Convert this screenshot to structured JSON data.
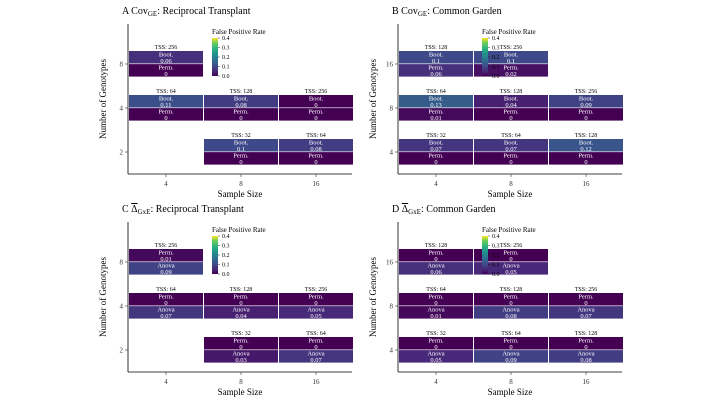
{
  "chart_data": [
    {
      "type": "heatmap",
      "panel_letter": "A",
      "title_main": "Cov",
      "title_sub": "GE",
      "title_rest": ": Reciprocal Transplant",
      "overline": false,
      "xlabel": "Sample Size",
      "ylabel": "Number of Genotypes",
      "x_categories": [
        "4",
        "8",
        "16"
      ],
      "y_categories": [
        "2",
        "4",
        "8"
      ],
      "legend": {
        "title": "False Positive Rate",
        "ticks": [
          "0.4",
          "0.3",
          "0.2",
          "0.1",
          "0.0"
        ],
        "range": [
          0,
          0.4
        ]
      },
      "cells": [
        {
          "x": "4",
          "y": "8",
          "tss": "TSS: 256",
          "rows": [
            {
              "label": "Boot.",
              "value": "0.06",
              "v": 0.06
            },
            {
              "label": "Perm.",
              "value": "0",
              "v": 0
            }
          ]
        },
        {
          "x": "4",
          "y": "4",
          "tss": "TSS: 64",
          "rows": [
            {
              "label": "Boot.",
              "value": "0.11",
              "v": 0.11
            },
            {
              "label": "Perm.",
              "value": "0",
              "v": 0
            }
          ]
        },
        {
          "x": "8",
          "y": "4",
          "tss": "TSS: 128",
          "rows": [
            {
              "label": "Boot.",
              "value": "0.08",
              "v": 0.08
            },
            {
              "label": "Perm.",
              "value": "0",
              "v": 0
            }
          ]
        },
        {
          "x": "16",
          "y": "4",
          "tss": "TSS: 256",
          "rows": [
            {
              "label": "Boot.",
              "value": "0",
              "v": 0
            },
            {
              "label": "Perm.",
              "value": "0",
              "v": 0
            }
          ]
        },
        {
          "x": "8",
          "y": "2",
          "tss": "TSS: 32",
          "rows": [
            {
              "label": "Boot.",
              "value": "0.1",
              "v": 0.1
            },
            {
              "label": "Perm.",
              "value": "0",
              "v": 0
            }
          ]
        },
        {
          "x": "16",
          "y": "2",
          "tss": "TSS: 64",
          "rows": [
            {
              "label": "Boot.",
              "value": "0.08",
              "v": 0.08
            },
            {
              "label": "Perm.",
              "value": "0",
              "v": 0
            }
          ]
        }
      ]
    },
    {
      "type": "heatmap",
      "panel_letter": "B",
      "title_main": "Cov",
      "title_sub": "GE",
      "title_rest": ": Common Garden",
      "overline": false,
      "xlabel": "Sample Size",
      "ylabel": "Number of Genotypes",
      "x_categories": [
        "4",
        "8",
        "16"
      ],
      "y_categories": [
        "4",
        "8",
        "16"
      ],
      "legend": {
        "title": "False Positive Rate",
        "ticks": [
          "0.4",
          "0.3",
          "0.2",
          "0.1",
          "0.0"
        ],
        "range": [
          0,
          0.4
        ]
      },
      "cells": [
        {
          "x": "4",
          "y": "16",
          "tss": "TSS: 128",
          "rows": [
            {
              "label": "Boot.",
              "value": "0.1",
              "v": 0.1
            },
            {
              "label": "Perm.",
              "value": "0.06",
              "v": 0.06
            }
          ]
        },
        {
          "x": "8",
          "y": "16",
          "tss": "TSS: 256",
          "rows": [
            {
              "label": "Boot.",
              "value": "0.1",
              "v": 0.1
            },
            {
              "label": "Perm.",
              "value": "0.02",
              "v": 0.02
            }
          ]
        },
        {
          "x": "4",
          "y": "8",
          "tss": "TSS: 64",
          "rows": [
            {
              "label": "Boot.",
              "value": "0.13",
              "v": 0.13
            },
            {
              "label": "Perm.",
              "value": "0.01",
              "v": 0.01
            }
          ]
        },
        {
          "x": "8",
          "y": "8",
          "tss": "TSS: 128",
          "rows": [
            {
              "label": "Boot.",
              "value": "0.04",
              "v": 0.04
            },
            {
              "label": "Perm.",
              "value": "0",
              "v": 0
            }
          ]
        },
        {
          "x": "16",
          "y": "8",
          "tss": "TSS: 256",
          "rows": [
            {
              "label": "Boot.",
              "value": "0.09",
              "v": 0.09
            },
            {
              "label": "Perm.",
              "value": "0",
              "v": 0
            }
          ]
        },
        {
          "x": "4",
          "y": "4",
          "tss": "TSS: 32",
          "rows": [
            {
              "label": "Boot.",
              "value": "0.07",
              "v": 0.07
            },
            {
              "label": "Perm.",
              "value": "0",
              "v": 0
            }
          ]
        },
        {
          "x": "8",
          "y": "4",
          "tss": "TSS: 64",
          "rows": [
            {
              "label": "Boot.",
              "value": "0.07",
              "v": 0.07
            },
            {
              "label": "Perm.",
              "value": "0",
              "v": 0
            }
          ]
        },
        {
          "x": "16",
          "y": "4",
          "tss": "TSS: 128",
          "rows": [
            {
              "label": "Boot.",
              "value": "0.12",
              "v": 0.12
            },
            {
              "label": "Perm.",
              "value": "0",
              "v": 0
            }
          ]
        }
      ]
    },
    {
      "type": "heatmap",
      "panel_letter": "C",
      "title_main": "Δ",
      "title_sub": "GxE",
      "title_rest": ": Reciprocal Transplant",
      "overline": true,
      "xlabel": "Sample Size",
      "ylabel": "Number of Genotypes",
      "x_categories": [
        "4",
        "8",
        "16"
      ],
      "y_categories": [
        "2",
        "4",
        "8"
      ],
      "legend": {
        "title": "False Positive Rate",
        "ticks": [
          "0.4",
          "0.3",
          "0.2",
          "0.1",
          "0.0"
        ],
        "range": [
          0,
          0.4
        ]
      },
      "cells": [
        {
          "x": "4",
          "y": "8",
          "tss": "TSS: 256",
          "rows": [
            {
              "label": "Perm.",
              "value": "0.01",
              "v": 0.01
            },
            {
              "label": "Anova",
              "value": "0.09",
              "v": 0.09
            }
          ]
        },
        {
          "x": "4",
          "y": "4",
          "tss": "TSS: 64",
          "rows": [
            {
              "label": "Perm.",
              "value": "0",
              "v": 0
            },
            {
              "label": "Anova",
              "value": "0.07",
              "v": 0.07
            }
          ]
        },
        {
          "x": "8",
          "y": "4",
          "tss": "TSS: 128",
          "rows": [
            {
              "label": "Perm.",
              "value": "0",
              "v": 0
            },
            {
              "label": "Anova",
              "value": "0.04",
              "v": 0.04
            }
          ]
        },
        {
          "x": "16",
          "y": "4",
          "tss": "TSS: 256",
          "rows": [
            {
              "label": "Perm.",
              "value": "0",
              "v": 0
            },
            {
              "label": "Anova",
              "value": "0.05",
              "v": 0.05
            }
          ]
        },
        {
          "x": "8",
          "y": "2",
          "tss": "TSS: 32",
          "rows": [
            {
              "label": "Perm.",
              "value": "0",
              "v": 0
            },
            {
              "label": "Anova",
              "value": "0.03",
              "v": 0.03
            }
          ]
        },
        {
          "x": "16",
          "y": "2",
          "tss": "TSS: 64",
          "rows": [
            {
              "label": "Perm.",
              "value": "0",
              "v": 0
            },
            {
              "label": "Anova",
              "value": "0.07",
              "v": 0.07
            }
          ]
        }
      ]
    },
    {
      "type": "heatmap",
      "panel_letter": "D",
      "title_main": "Δ",
      "title_sub": "GxE",
      "title_rest": ": Common Garden",
      "overline": true,
      "xlabel": "Sample Size",
      "ylabel": "Number of Genotypes",
      "x_categories": [
        "4",
        "8",
        "16"
      ],
      "y_categories": [
        "4",
        "8",
        "16"
      ],
      "legend": {
        "title": "False Positive Rate",
        "ticks": [
          "0.4",
          "0.3",
          "0.2",
          "0.1",
          "0.0"
        ],
        "range": [
          0,
          0.4
        ]
      },
      "cells": [
        {
          "x": "4",
          "y": "16",
          "tss": "TSS: 128",
          "rows": [
            {
              "label": "Perm.",
              "value": "0",
              "v": 0
            },
            {
              "label": "Anova",
              "value": "0.06",
              "v": 0.06
            }
          ]
        },
        {
          "x": "8",
          "y": "16",
          "tss": "TSS: 256",
          "rows": [
            {
              "label": "Perm.",
              "value": "0",
              "v": 0
            },
            {
              "label": "Anova",
              "value": "0.05",
              "v": 0.05
            }
          ]
        },
        {
          "x": "4",
          "y": "8",
          "tss": "TSS: 64",
          "rows": [
            {
              "label": "Perm.",
              "value": "0",
              "v": 0
            },
            {
              "label": "Anova",
              "value": "0.01",
              "v": 0.01
            }
          ]
        },
        {
          "x": "8",
          "y": "8",
          "tss": "TSS: 128",
          "rows": [
            {
              "label": "Perm.",
              "value": "0",
              "v": 0
            },
            {
              "label": "Anova",
              "value": "0.08",
              "v": 0.08
            }
          ]
        },
        {
          "x": "16",
          "y": "8",
          "tss": "TSS: 256",
          "rows": [
            {
              "label": "Perm.",
              "value": "0",
              "v": 0
            },
            {
              "label": "Anova",
              "value": "0.07",
              "v": 0.07
            }
          ]
        },
        {
          "x": "4",
          "y": "4",
          "tss": "TSS: 32",
          "rows": [
            {
              "label": "Perm.",
              "value": "0",
              "v": 0
            },
            {
              "label": "Anova",
              "value": "0.05",
              "v": 0.05
            }
          ]
        },
        {
          "x": "8",
          "y": "4",
          "tss": "TSS: 64",
          "rows": [
            {
              "label": "Perm.",
              "value": "0",
              "v": 0
            },
            {
              "label": "Anova",
              "value": "0.09",
              "v": 0.09
            }
          ]
        },
        {
          "x": "16",
          "y": "4",
          "tss": "TSS: 128",
          "rows": [
            {
              "label": "Perm.",
              "value": "0",
              "v": 0
            },
            {
              "label": "Anova",
              "value": "0.08",
              "v": 0.08
            }
          ]
        }
      ]
    }
  ]
}
